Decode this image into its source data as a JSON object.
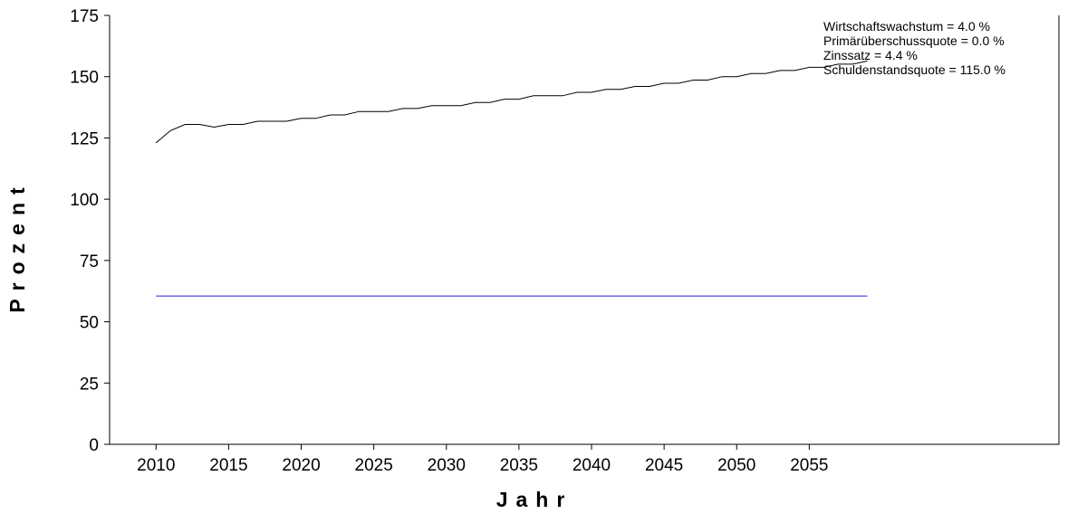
{
  "chart_data": {
    "type": "line",
    "xlabel": "Jahr",
    "ylabel": "Prozent",
    "xlim": [
      2006.8,
      2072.2
    ],
    "ylim": [
      0,
      175
    ],
    "xticks": [
      2010,
      2015,
      2020,
      2025,
      2030,
      2035,
      2040,
      2045,
      2050,
      2055
    ],
    "yticks": [
      0,
      25,
      50,
      75,
      100,
      125,
      150,
      175
    ],
    "grid": false,
    "legend_position": "top-right",
    "annotations": [
      "Wirtschaftswachstum = 4.0 %",
      "Primärüberschussquote = 0.0 %",
      "Zinssatz =  4.4 %",
      "Schuldenstandsquote = 115.0 %"
    ],
    "series": [
      {
        "color": "#000000",
        "x": [
          2010,
          2011,
          2012,
          2013,
          2014,
          2015,
          2016,
          2017,
          2018,
          2019,
          2020,
          2021,
          2022,
          2023,
          2024,
          2025,
          2026,
          2027,
          2028,
          2029,
          2030,
          2031,
          2032,
          2033,
          2034,
          2035,
          2036,
          2037,
          2038,
          2039,
          2040,
          2041,
          2042,
          2043,
          2044,
          2045,
          2046,
          2047,
          2048,
          2049,
          2050,
          2051,
          2052,
          2053,
          2054,
          2055,
          2056,
          2057,
          2058,
          2059
        ],
        "values": [
          123.0,
          128.0,
          130.5,
          130.5,
          129.4,
          130.5,
          130.5,
          131.8,
          131.8,
          131.8,
          133.0,
          133.0,
          134.4,
          134.4,
          135.8,
          135.8,
          135.8,
          137.0,
          137.0,
          138.2,
          138.2,
          138.2,
          139.5,
          139.5,
          140.8,
          140.8,
          142.2,
          142.2,
          142.2,
          143.6,
          143.6,
          144.8,
          144.8,
          146.0,
          146.0,
          147.3,
          147.3,
          148.6,
          148.6,
          150.0,
          150.0,
          151.3,
          151.3,
          152.5,
          152.5,
          153.8,
          153.8,
          155.1,
          155.1,
          156.4
        ]
      },
      {
        "color": "#2222cc",
        "x": [
          2010,
          2059
        ],
        "values": [
          60.5,
          60.5
        ]
      }
    ]
  }
}
